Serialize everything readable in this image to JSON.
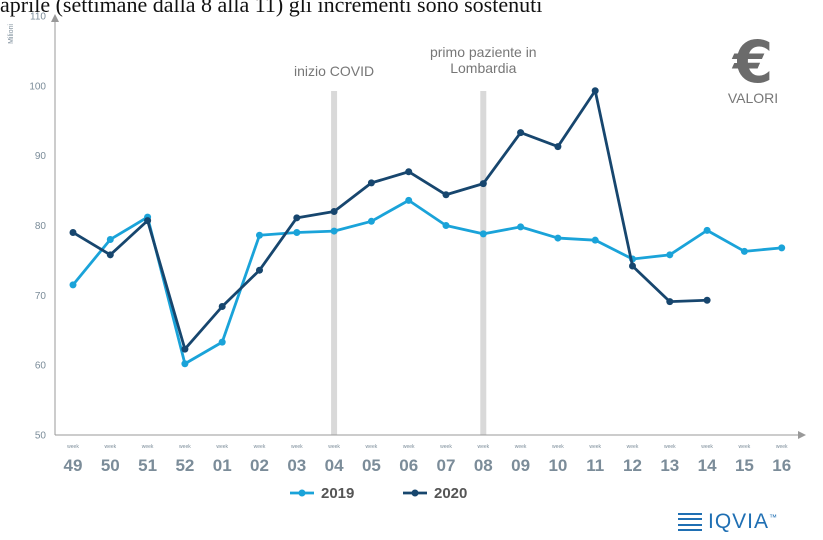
{
  "header_text": "aprile (settimane dalla 8 alla 11) gli incrementi sono sostenuti",
  "unit_label": "Milioni",
  "currency_badge": {
    "symbol": "€",
    "label": "VALORI"
  },
  "logo": {
    "text": "IQVIA",
    "tm": "™"
  },
  "colors": {
    "series_2019": "#1aa3d9",
    "series_2020": "#17466e",
    "markers": "#d9d9d9",
    "axis": "#999999",
    "text": "#777777",
    "ticks": "#7b8c99"
  },
  "chart_data": {
    "type": "line",
    "week_word": "week",
    "categories": [
      "49",
      "50",
      "51",
      "52",
      "01",
      "02",
      "03",
      "04",
      "05",
      "06",
      "07",
      "08",
      "09",
      "10",
      "11",
      "12",
      "13",
      "14",
      "15",
      "16"
    ],
    "ylim": [
      50,
      110
    ],
    "yticks": [
      50,
      60,
      70,
      80,
      90,
      100,
      110
    ],
    "grid": false,
    "legend_position": "bottom-center",
    "series": [
      {
        "name": "2019",
        "values": [
          71.5,
          78.0,
          81.2,
          60.2,
          63.3,
          78.6,
          79.0,
          79.2,
          80.6,
          83.6,
          80.0,
          78.8,
          79.8,
          78.2,
          77.9,
          75.2,
          75.8,
          79.3,
          76.3,
          76.8
        ]
      },
      {
        "name": "2020",
        "values": [
          79.0,
          75.8,
          80.7,
          62.3,
          68.4,
          73.6,
          81.1,
          82.0,
          86.1,
          87.7,
          84.4,
          86.0,
          93.3,
          91.3,
          99.3,
          74.2,
          69.1,
          69.3,
          null,
          null
        ]
      }
    ],
    "markers": [
      {
        "category": "04",
        "label": "inizio COVID"
      },
      {
        "category": "08",
        "label": "primo paziente in\nLombardia"
      }
    ]
  }
}
